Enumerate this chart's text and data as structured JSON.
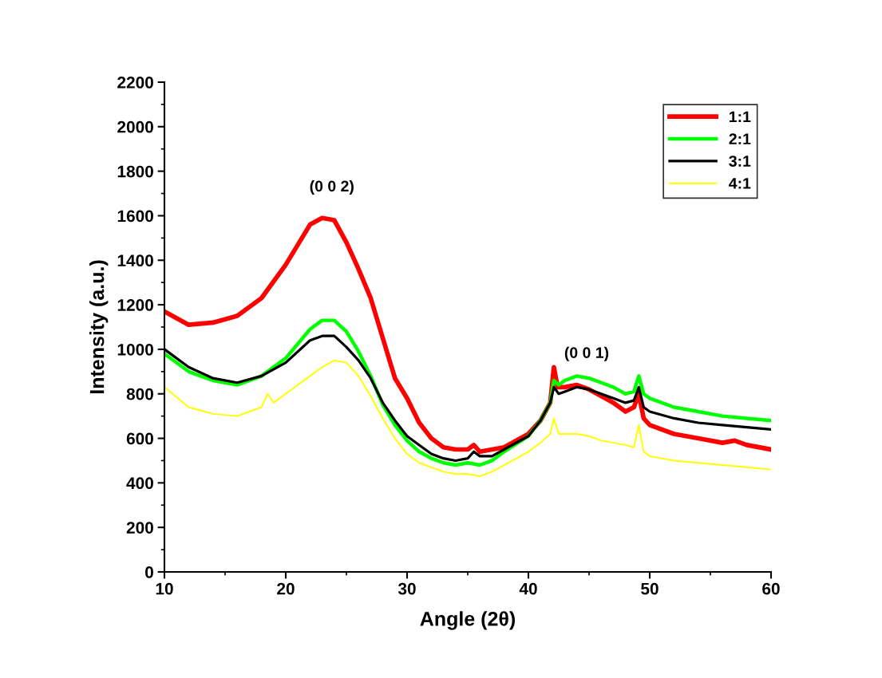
{
  "chart_data": {
    "type": "line",
    "xlabel": "Angle (2θ)",
    "ylabel": "Intensity (a.u.)",
    "xlim": [
      10,
      60
    ],
    "ylim": [
      0,
      2200
    ],
    "xticks": [
      10,
      20,
      30,
      40,
      50,
      60
    ],
    "yticks": [
      0,
      200,
      400,
      600,
      800,
      1000,
      1200,
      1400,
      1600,
      1800,
      2000,
      2200
    ],
    "grid": false,
    "legend": "top right",
    "marker": "none",
    "line_style": "solid",
    "annotations": [
      "(0 0 2)",
      "(0 0 1)"
    ],
    "series": [
      {
        "name": "1:1",
        "color": "#ff0000",
        "x": [
          10,
          12,
          14,
          16,
          18,
          20,
          22,
          23,
          24,
          25,
          26,
          27,
          28,
          29,
          30,
          31,
          32,
          33,
          34,
          35,
          35.5,
          36,
          38,
          40,
          41,
          41.8,
          42.1,
          42.4,
          43,
          44,
          45,
          46,
          47,
          48,
          48.7,
          49.1,
          49.5,
          50,
          52,
          54,
          56,
          57,
          58,
          60
        ],
        "values": [
          1170,
          1110,
          1120,
          1150,
          1230,
          1380,
          1560,
          1590,
          1580,
          1480,
          1360,
          1230,
          1050,
          870,
          780,
          670,
          600,
          560,
          550,
          550,
          570,
          540,
          560,
          620,
          680,
          760,
          920,
          830,
          830,
          840,
          820,
          790,
          760,
          720,
          740,
          800,
          690,
          660,
          620,
          600,
          580,
          590,
          570,
          550
        ]
      },
      {
        "name": "2:1",
        "color": "#00ff00",
        "x": [
          10,
          12,
          14,
          16,
          18,
          20,
          22,
          23,
          24,
          25,
          26,
          27,
          28,
          29,
          30,
          31,
          32,
          33,
          34,
          35,
          36,
          37,
          38,
          40,
          41,
          41.8,
          42.1,
          42.5,
          43,
          44,
          45,
          46,
          47,
          48,
          48.7,
          49.1,
          49.5,
          50,
          52,
          54,
          56,
          58,
          60
        ],
        "values": [
          980,
          900,
          860,
          840,
          880,
          960,
          1090,
          1130,
          1130,
          1080,
          990,
          880,
          750,
          660,
          590,
          540,
          510,
          490,
          480,
          490,
          480,
          500,
          540,
          610,
          680,
          760,
          860,
          840,
          860,
          880,
          870,
          850,
          830,
          800,
          810,
          880,
          800,
          780,
          740,
          720,
          700,
          690,
          680
        ]
      },
      {
        "name": "3:1",
        "color": "#000000",
        "x": [
          10,
          12,
          14,
          16,
          18,
          20,
          22,
          23,
          24,
          25,
          26,
          27,
          28,
          29,
          30,
          31,
          32,
          33,
          34,
          35,
          35.5,
          36,
          37,
          38,
          40,
          41,
          41.8,
          42.1,
          42.5,
          43,
          44,
          45,
          46,
          47,
          48,
          48.7,
          49.1,
          49.5,
          50,
          52,
          54,
          56,
          58,
          60
        ],
        "values": [
          1000,
          920,
          870,
          850,
          880,
          940,
          1040,
          1060,
          1060,
          1010,
          950,
          870,
          760,
          680,
          610,
          570,
          530,
          510,
          500,
          510,
          540,
          520,
          520,
          550,
          610,
          680,
          760,
          830,
          800,
          810,
          830,
          820,
          800,
          780,
          760,
          770,
          830,
          740,
          720,
          690,
          670,
          660,
          650,
          640
        ]
      },
      {
        "name": "4:1",
        "color": "#ffff00",
        "x": [
          10,
          12,
          14,
          16,
          18,
          18.5,
          19,
          20,
          22,
          23,
          24,
          25,
          26,
          27,
          28,
          29,
          30,
          31,
          32,
          33,
          34,
          35,
          36,
          37,
          38,
          40,
          41,
          41.8,
          42.1,
          42.5,
          43,
          44,
          45,
          46,
          47,
          48,
          48.7,
          49.1,
          49.5,
          50,
          52,
          54,
          56,
          58,
          60
        ],
        "values": [
          830,
          740,
          710,
          700,
          740,
          800,
          760,
          800,
          880,
          920,
          950,
          940,
          880,
          790,
          690,
          600,
          530,
          490,
          470,
          450,
          440,
          440,
          430,
          450,
          480,
          540,
          580,
          620,
          690,
          620,
          620,
          620,
          610,
          590,
          580,
          570,
          560,
          660,
          540,
          520,
          500,
          490,
          480,
          470,
          460
        ]
      }
    ]
  }
}
